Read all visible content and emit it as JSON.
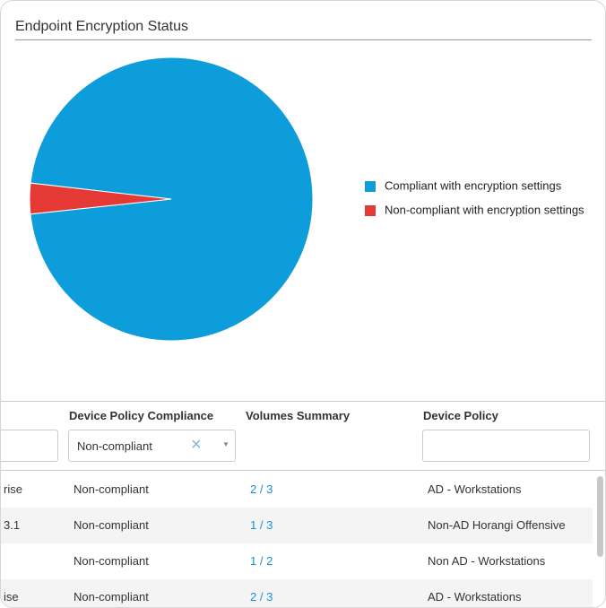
{
  "chart_data": {
    "type": "pie",
    "title": "Endpoint Encryption Status",
    "categories": [
      "Compliant with encryption settings",
      "Non-compliant with encryption settings"
    ],
    "values": [
      96.5,
      3.5
    ],
    "colors": [
      "#0e9ddb",
      "#e53935"
    ],
    "legend": "right"
  },
  "table": {
    "headers": [
      "Device Policy Compliance",
      "Volumes Summary",
      "Device Policy"
    ],
    "filter": "Non-compliant",
    "rows": [
      {
        "cut": "rise",
        "compliance": "Non-compliant",
        "volumes": "2 / 3",
        "policy": "AD - Workstations"
      },
      {
        "cut": "3.1",
        "compliance": "Non-compliant",
        "volumes": "1 / 3",
        "policy": "Non-AD Horangi Offensive"
      },
      {
        "compliance": "Non-compliant",
        "volumes": "1 / 2",
        "policy": "Non AD - Workstations"
      },
      {
        "cut": "ise",
        "compliance": "Non-compliant",
        "volumes": "2 / 3",
        "policy": "AD - Workstations"
      }
    ]
  }
}
